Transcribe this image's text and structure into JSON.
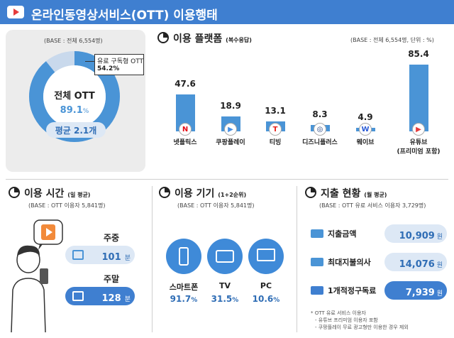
{
  "header": {
    "title": "온라인동영상서비스(OTT) 이용행태"
  },
  "overall": {
    "base": "(BASE : 전체 6,554명)",
    "center_title": "전체 OTT",
    "center_value": "89.1",
    "center_unit": "%",
    "avg_label": "평균 2.1개",
    "callout_label": "유료 구독형 OTT",
    "callout_value": "54.2%",
    "share_total": 89.1,
    "share_paid": 54.2
  },
  "platform": {
    "title": "이용 플랫폼",
    "subtitle": "(복수응답)",
    "base": "(BASE : 전체 6,554명, 단위 : %)"
  },
  "chart_data": {
    "type": "bar",
    "categories": [
      "넷플릭스",
      "쿠팡플레이",
      "티빙",
      "디즈니플러스",
      "웨이브",
      "유튜브"
    ],
    "category_note": "(프리미엄 포함)",
    "values": [
      47.6,
      18.9,
      13.1,
      8.3,
      4.9,
      85.4
    ],
    "value_labels": [
      "47.6",
      "18.9",
      "13.1",
      "8.3",
      "4.9",
      "85.4"
    ],
    "ylim": [
      0,
      100
    ],
    "color": "#4a94d6"
  },
  "time": {
    "title": "이용 시간",
    "subtitle": "(일 평균)",
    "base": "(BASE : OTT 이용자 5,841명)",
    "weekday_label": "주중",
    "weekday_value": "101",
    "weekend_label": "주말",
    "weekend_value": "128",
    "unit": "분"
  },
  "device": {
    "title": "이용 기기",
    "subtitle": "(1+2순위)",
    "base": "(BASE : OTT 이용자 5,841명)",
    "items": [
      {
        "name": "스마트폰",
        "value": "91.7",
        "icon": "smartphone-icon"
      },
      {
        "name": "TV",
        "value": "31.5",
        "icon": "tv-icon"
      },
      {
        "name": "PC",
        "value": "10.6",
        "icon": "pc-icon"
      }
    ],
    "unit": "%"
  },
  "spending": {
    "title": "지출 현황",
    "subtitle": "(월 평균)",
    "base": "(BASE : OTT 유료 서비스 이용자 3,729명)",
    "items": [
      {
        "label": "지출금액",
        "value": "10,909"
      },
      {
        "label": "최대지불의사",
        "value": "14,076"
      },
      {
        "label": "1개적정구독료",
        "value": "7,939"
      }
    ],
    "unit": "원",
    "notes": [
      "* OTT 유료 서비스 이용자",
      "- 유튜브 프리미엄 이용자 포함",
      "- 쿠팡플레이 무료 광고형만 이용한 경우 제외"
    ]
  },
  "colors": {
    "header": "#3f7fd0",
    "accent": "#4a94d6",
    "pill": "#dde8f5",
    "highlight_pill": "#3f7fd0"
  }
}
